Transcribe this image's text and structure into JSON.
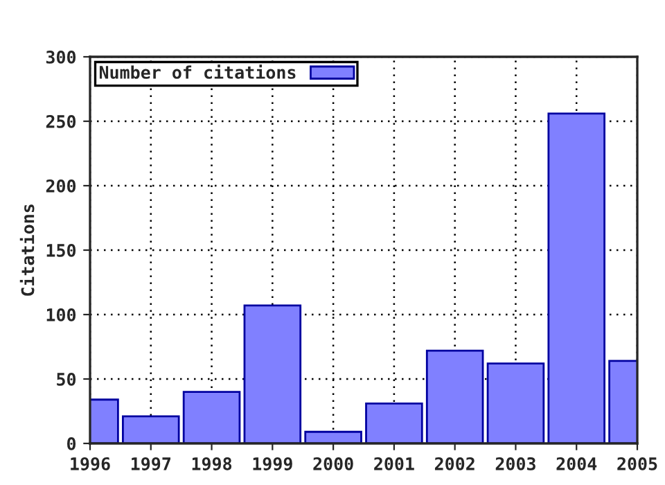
{
  "chart_data": {
    "type": "bar",
    "ylabel": "Citations",
    "x": [
      1996,
      1997,
      1998,
      1999,
      2000,
      2001,
      2002,
      2003,
      2004,
      2005
    ],
    "series": [
      {
        "name": "Number of citations",
        "color": "#8080ff",
        "values": [
          34,
          21,
          40,
          107,
          9,
          31,
          72,
          62,
          256,
          64
        ]
      }
    ],
    "xlim": [
      1996,
      2005
    ],
    "xticks": [
      1996,
      1997,
      1998,
      1999,
      2000,
      2001,
      2002,
      2003,
      2004,
      2005
    ],
    "ylim": [
      0,
      300
    ],
    "yticks": [
      0,
      50,
      100,
      150,
      200,
      250,
      300
    ],
    "grid": true,
    "legend": "top left"
  }
}
